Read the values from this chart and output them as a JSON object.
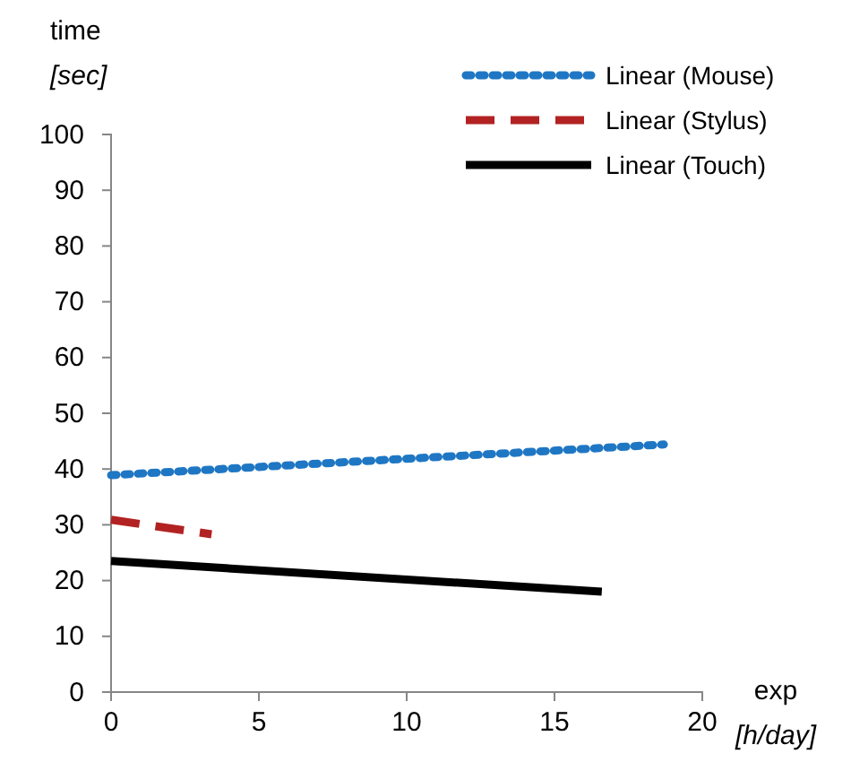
{
  "chart_data": {
    "type": "line",
    "xlabel": "exp [h/day]",
    "ylabel": "time [sec]",
    "xlim": [
      0,
      20
    ],
    "xticks": [
      0,
      5,
      10,
      15,
      20
    ],
    "ylim": [
      0,
      100
    ],
    "yticks": [
      0,
      10,
      20,
      30,
      40,
      50,
      60,
      70,
      80,
      90,
      100
    ],
    "grid": false,
    "legend": "top right",
    "marker": "none",
    "series": [
      {
        "name": "Linear (Mouse)",
        "color": "#1f77c4",
        "line_style": "dotted",
        "x": [
          0,
          18.7
        ],
        "values": [
          38.9,
          44.4
        ]
      },
      {
        "name": "Linear (Stylus)",
        "color": "#b22222",
        "line_style": "dashed",
        "x": [
          0,
          3.4
        ],
        "values": [
          30.9,
          28.3
        ]
      },
      {
        "name": "Linear (Touch)",
        "color": "#000000",
        "line_style": "solid",
        "x": [
          0,
          16.6
        ],
        "values": [
          23.5,
          18
        ]
      }
    ]
  }
}
